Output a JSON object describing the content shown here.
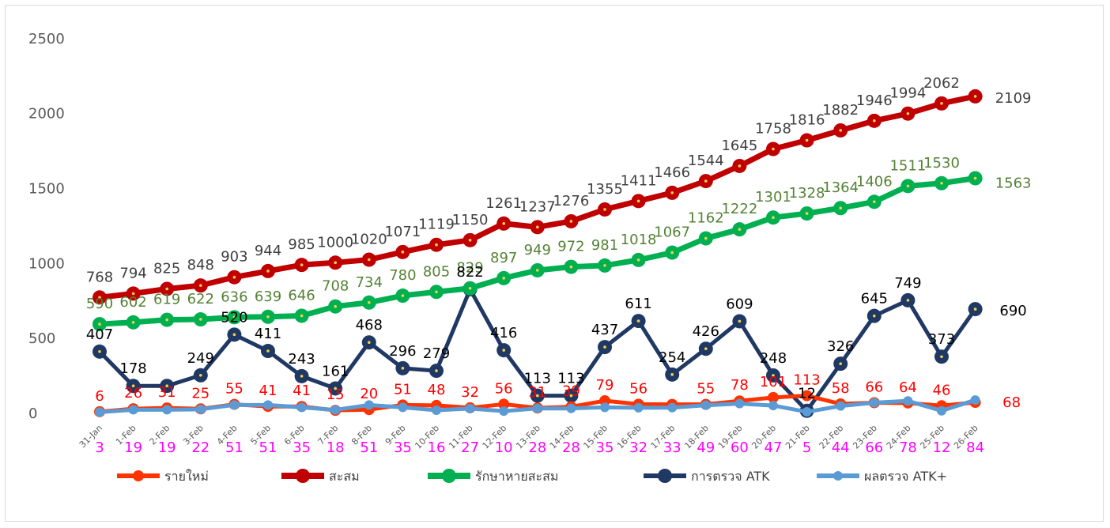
{
  "chart_data": {
    "type": "line",
    "title": "",
    "xlabel": "",
    "ylabel": "",
    "ylim": [
      0,
      2500
    ],
    "yticks": [
      0,
      500,
      1000,
      1500,
      2000,
      2500
    ],
    "grid": false,
    "legend_position": "bottom",
    "categories": [
      "31-Jan",
      "1-Feb",
      "2-Feb",
      "3-Feb",
      "4-Feb",
      "5-Feb",
      "6-Feb",
      "7-Feb",
      "8-Feb",
      "9-Feb",
      "10-Feb",
      "11-Feb",
      "12-Feb",
      "13-Feb",
      "14-Feb",
      "15-Feb",
      "16-Feb",
      "17-Feb",
      "18-Feb",
      "19-Feb",
      "20-Feb",
      "21-Feb",
      "22-Feb",
      "23-Feb",
      "24-Feb",
      "25-Feb",
      "26-Feb"
    ],
    "series": [
      {
        "name": "รายใหม่",
        "color": "#ff3300",
        "label_color": "#ff0000",
        "values": [
          6,
          26,
          31,
          25,
          55,
          41,
          41,
          15,
          20,
          51,
          48,
          32,
          56,
          31,
          39,
          79,
          56,
          55,
          55,
          78,
          101,
          113,
          58,
          66,
          64,
          46,
          68
        ],
        "labels": [
          "6",
          "26",
          "31",
          "25",
          "55",
          "41",
          "41",
          "15",
          "20",
          "51",
          "48",
          "32",
          "56",
          "31",
          "39",
          "79",
          "56",
          "",
          "55",
          "78",
          "101",
          "113",
          "58",
          "66",
          "64",
          "46",
          "68"
        ]
      },
      {
        "name": "สะสม",
        "color": "#c00000",
        "label_color": "#404040",
        "values": [
          768,
          794,
          825,
          848,
          903,
          944,
          985,
          1000,
          1020,
          1071,
          1119,
          1150,
          1261,
          1237,
          1276,
          1355,
          1411,
          1466,
          1544,
          1645,
          1758,
          1816,
          1882,
          1946,
          1994,
          2062,
          2109
        ],
        "labels": [
          "768",
          "794",
          "825",
          "848",
          "903",
          "944",
          "985",
          "1000",
          "1020",
          "1071",
          "1119",
          "1150",
          "1261",
          "1237",
          "1276",
          "1355",
          "1411",
          "1466",
          "1544",
          "1645",
          "1758",
          "1816",
          "1882",
          "1946",
          "1994",
          "2062",
          "2109"
        ]
      },
      {
        "name": "รักษาหายสะสม",
        "color": "#00b050",
        "label_color": "#548235",
        "values": [
          590,
          602,
          619,
          622,
          636,
          639,
          646,
          708,
          734,
          780,
          805,
          829,
          897,
          949,
          972,
          981,
          1018,
          1067,
          1162,
          1222,
          1301,
          1328,
          1364,
          1406,
          1511,
          1530,
          1563
        ],
        "labels": [
          "590",
          "602",
          "619",
          "622",
          "636",
          "639",
          "646",
          "708",
          "734",
          "780",
          "805",
          "829",
          "897",
          "949",
          "972",
          "981",
          "1018",
          "1067",
          "1162",
          "1222",
          "1301",
          "1328",
          "1364",
          "1406",
          "1511",
          "1530",
          "1563"
        ]
      },
      {
        "name": "การตรวจ ATK",
        "color": "#203864",
        "label_color": "#000000",
        "values": [
          407,
          178,
          178,
          249,
          520,
          411,
          243,
          161,
          468,
          296,
          279,
          822,
          416,
          113,
          113,
          437,
          611,
          254,
          426,
          609,
          248,
          12,
          326,
          645,
          749,
          373,
          690
        ],
        "labels": [
          "407",
          "178",
          "",
          "249",
          "520",
          "411",
          "243",
          "161",
          "468",
          "296",
          "279",
          "822",
          "416",
          "113",
          "113",
          "437",
          "611",
          "254",
          "426",
          "609",
          "248",
          "12",
          "326",
          "645",
          "749",
          "373",
          "690"
        ]
      },
      {
        "name": "ผลตรวจ ATK+",
        "color": "#5b9bd5",
        "label_color": "#ff00ff",
        "values": [
          3,
          19,
          19,
          22,
          51,
          51,
          35,
          18,
          51,
          35,
          16,
          27,
          10,
          28,
          28,
          35,
          32,
          33,
          49,
          60,
          47,
          5,
          44,
          66,
          78,
          12,
          84
        ],
        "labels": [
          "3",
          "19",
          "19",
          "22",
          "51",
          "51",
          "35",
          "18",
          "51",
          "35",
          "16",
          "27",
          "10",
          "28",
          "28",
          "35",
          "32",
          "33",
          "49",
          "60",
          "47",
          "5",
          "44",
          "66",
          "78",
          "12",
          "84"
        ]
      }
    ]
  }
}
